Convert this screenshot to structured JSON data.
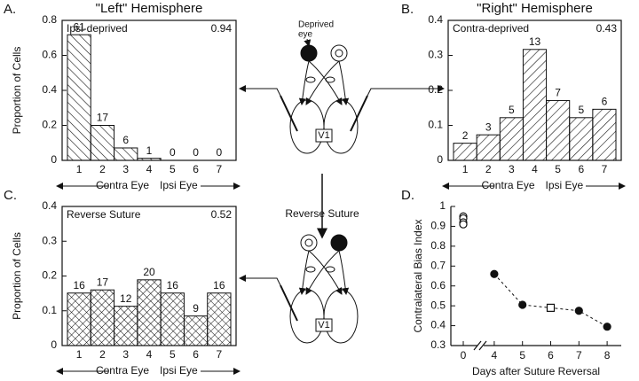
{
  "chart_data": [
    {
      "type": "bar",
      "panel_label": "A.",
      "title": "\"Left\" Hemisphere",
      "annotation": "Ipsi-deprived",
      "bias_index": 0.94,
      "y_label": "Proportion of Cells",
      "x_label_left": "Contra Eye",
      "x_label_right": "Ipsi Eye",
      "categories": [
        "1",
        "2",
        "3",
        "4",
        "5",
        "6",
        "7"
      ],
      "values": [
        0.718,
        0.2,
        0.071,
        0.012,
        0,
        0,
        0
      ],
      "cell_counts": [
        61,
        17,
        6,
        1,
        0,
        0,
        0
      ],
      "ylim": [
        0,
        0.8
      ],
      "yticks": [
        0,
        0.2,
        0.4,
        0.6,
        0.8
      ],
      "hatch": "backslash",
      "color": "#111111"
    },
    {
      "type": "bar",
      "panel_label": "B.",
      "title": "\"Right\" Hemisphere",
      "annotation": "Contra-deprived",
      "bias_index": 0.43,
      "x_label_left": "Contra Eye",
      "x_label_right": "Ipsi Eye",
      "categories": [
        "1",
        "2",
        "3",
        "4",
        "5",
        "6",
        "7"
      ],
      "values": [
        0.049,
        0.073,
        0.122,
        0.317,
        0.171,
        0.122,
        0.146
      ],
      "cell_counts": [
        2,
        3,
        5,
        13,
        7,
        5,
        6
      ],
      "ylim": [
        0,
        0.4
      ],
      "yticks": [
        0,
        0.1,
        0.2,
        0.3,
        0.4
      ],
      "hatch": "slash",
      "color": "#111111"
    },
    {
      "type": "bar",
      "panel_label": "C.",
      "annotation": "Reverse Suture",
      "bias_index": 0.52,
      "y_label": "Proportion of Cells",
      "x_label_left": "Contra Eye",
      "x_label_right": "Ipsi Eye",
      "categories": [
        "1",
        "2",
        "3",
        "4",
        "5",
        "6",
        "7"
      ],
      "values": [
        0.151,
        0.16,
        0.113,
        0.189,
        0.151,
        0.085,
        0.151
      ],
      "cell_counts": [
        16,
        17,
        12,
        20,
        16,
        9,
        16
      ],
      "ylim": [
        0,
        0.4
      ],
      "yticks": [
        0,
        0.1,
        0.2,
        0.3,
        0.4
      ],
      "hatch": "cross",
      "color": "#111111"
    },
    {
      "type": "scatter",
      "panel_label": "D.",
      "y_label": "Contralateral Bias Index",
      "x_label": "Days after Suture Reversal",
      "xlim": [
        -0.5,
        8.5
      ],
      "xticks": [
        0,
        4,
        5,
        6,
        7,
        8
      ],
      "ylim": [
        0.3,
        1
      ],
      "yticks": [
        0.3,
        0.4,
        0.5,
        0.6,
        0.7,
        0.8,
        0.9,
        1
      ],
      "series": [
        {
          "color": "#111111",
          "x": [
            0,
            0,
            0,
            0
          ],
          "values": [
            0.95,
            0.94,
            0.92,
            0.91
          ],
          "markers": [
            "circle-open",
            "circle-open",
            "circle-open",
            "circle-open"
          ],
          "line": "none"
        },
        {
          "color": "#111111",
          "x": [
            4,
            5,
            6,
            7,
            8
          ],
          "values": [
            0.66,
            0.505,
            0.49,
            0.475,
            0.395
          ],
          "markers": [
            "circle-filled",
            "circle-filled",
            "square-open",
            "circle-filled",
            "circle-filled"
          ],
          "line": "dashed"
        }
      ]
    }
  ],
  "diagram": {
    "deprived_eye": [
      "Deprived",
      "eye"
    ],
    "v1_labels": [
      "V1",
      "V1"
    ],
    "reverse_suture": "Reverse Suture"
  }
}
